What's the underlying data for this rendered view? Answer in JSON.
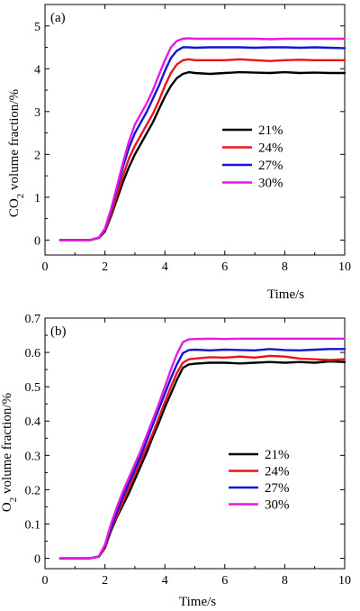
{
  "colors": {
    "21%": "#000000",
    "24%": "#e8141b",
    "27%": "#1414d2",
    "30%": "#e619e6"
  },
  "chart_data": [
    {
      "type": "line",
      "panel_label": "(a)",
      "ylabel_main": "CO",
      "ylabel_sub": "2",
      "ylabel_rest": " volume fraction/%",
      "xlabel": "Time/s",
      "xlim": [
        0,
        10
      ],
      "ylim": [
        -0.35,
        5.5
      ],
      "xticks": [
        0,
        2,
        4,
        6,
        8,
        10
      ],
      "yticks": [
        0,
        1,
        2,
        3,
        4,
        5
      ],
      "legend_position": "center-right",
      "x": [
        0.5,
        1.0,
        1.5,
        1.8,
        2.0,
        2.2,
        2.4,
        2.6,
        2.8,
        3.0,
        3.2,
        3.4,
        3.6,
        3.8,
        4.0,
        4.2,
        4.4,
        4.6,
        4.8,
        5.0,
        5.5,
        6.0,
        6.5,
        7.0,
        7.5,
        8.0,
        8.5,
        9.0,
        9.5,
        10.0
      ],
      "series": [
        {
          "name": "21%",
          "values": [
            0.0,
            0.0,
            0.0,
            0.05,
            0.2,
            0.55,
            0.95,
            1.35,
            1.7,
            2.0,
            2.25,
            2.5,
            2.75,
            3.05,
            3.35,
            3.6,
            3.78,
            3.88,
            3.92,
            3.9,
            3.88,
            3.9,
            3.92,
            3.91,
            3.9,
            3.92,
            3.9,
            3.91,
            3.9,
            3.9
          ]
        },
        {
          "name": "24%",
          "values": [
            0.0,
            0.0,
            0.0,
            0.05,
            0.22,
            0.6,
            1.05,
            1.5,
            1.9,
            2.2,
            2.45,
            2.7,
            2.95,
            3.25,
            3.6,
            3.9,
            4.1,
            4.2,
            4.22,
            4.2,
            4.2,
            4.2,
            4.22,
            4.2,
            4.18,
            4.2,
            4.21,
            4.2,
            4.2,
            4.2
          ]
        },
        {
          "name": "27%",
          "values": [
            0.0,
            0.0,
            0.0,
            0.06,
            0.25,
            0.68,
            1.2,
            1.7,
            2.15,
            2.5,
            2.75,
            3.0,
            3.3,
            3.6,
            3.95,
            4.25,
            4.42,
            4.5,
            4.5,
            4.49,
            4.5,
            4.5,
            4.5,
            4.49,
            4.5,
            4.5,
            4.49,
            4.5,
            4.49,
            4.48
          ]
        },
        {
          "name": "30%",
          "values": [
            0.0,
            0.0,
            0.0,
            0.06,
            0.27,
            0.72,
            1.25,
            1.8,
            2.3,
            2.7,
            2.95,
            3.2,
            3.5,
            3.85,
            4.2,
            4.5,
            4.65,
            4.7,
            4.71,
            4.7,
            4.7,
            4.7,
            4.7,
            4.7,
            4.69,
            4.7,
            4.7,
            4.7,
            4.7,
            4.7
          ]
        }
      ]
    },
    {
      "type": "line",
      "panel_label": "(b)",
      "ylabel_main": "O",
      "ylabel_sub": "2",
      "ylabel_rest": " volume fraction/%",
      "xlabel": "Time/s",
      "xlim": [
        0,
        10
      ],
      "ylim": [
        -0.03,
        0.7
      ],
      "xticks": [
        0,
        2,
        4,
        6,
        8,
        10
      ],
      "yticks": [
        0.0,
        0.1,
        0.2,
        0.3,
        0.4,
        0.5,
        0.6,
        0.7
      ],
      "ytick_labels": [
        "0",
        "0.1",
        "0.2",
        "0.3",
        "0.4",
        "0.5",
        "0.6",
        "0.7"
      ],
      "legend_position": "center-right",
      "x": [
        0.5,
        1.0,
        1.5,
        1.8,
        2.0,
        2.2,
        2.4,
        2.6,
        2.8,
        3.0,
        3.2,
        3.4,
        3.6,
        3.8,
        4.0,
        4.2,
        4.4,
        4.6,
        4.8,
        5.0,
        5.5,
        6.0,
        6.5,
        7.0,
        7.5,
        8.0,
        8.5,
        9.0,
        9.5,
        10.0
      ],
      "series": [
        {
          "name": "21%",
          "values": [
            0.0,
            0.0,
            0.0,
            0.005,
            0.03,
            0.08,
            0.12,
            0.155,
            0.19,
            0.23,
            0.27,
            0.31,
            0.355,
            0.395,
            0.44,
            0.48,
            0.52,
            0.555,
            0.565,
            0.567,
            0.57,
            0.57,
            0.568,
            0.57,
            0.572,
            0.57,
            0.572,
            0.57,
            0.574,
            0.572
          ]
        },
        {
          "name": "24%",
          "values": [
            0.0,
            0.0,
            0.0,
            0.005,
            0.03,
            0.085,
            0.125,
            0.165,
            0.205,
            0.245,
            0.285,
            0.325,
            0.365,
            0.41,
            0.455,
            0.5,
            0.54,
            0.57,
            0.58,
            0.582,
            0.586,
            0.585,
            0.588,
            0.585,
            0.59,
            0.588,
            0.582,
            0.58,
            0.578,
            0.58
          ]
        },
        {
          "name": "27%",
          "values": [
            0.0,
            0.0,
            0.0,
            0.006,
            0.035,
            0.09,
            0.135,
            0.18,
            0.22,
            0.26,
            0.3,
            0.345,
            0.39,
            0.435,
            0.48,
            0.525,
            0.565,
            0.598,
            0.607,
            0.608,
            0.606,
            0.608,
            0.607,
            0.606,
            0.61,
            0.607,
            0.606,
            0.608,
            0.61,
            0.61
          ]
        },
        {
          "name": "30%",
          "values": [
            0.0,
            0.0,
            0.0,
            0.006,
            0.04,
            0.1,
            0.15,
            0.195,
            0.235,
            0.275,
            0.315,
            0.36,
            0.405,
            0.45,
            0.5,
            0.55,
            0.595,
            0.63,
            0.638,
            0.639,
            0.64,
            0.639,
            0.64,
            0.64,
            0.64,
            0.64,
            0.64,
            0.64,
            0.64,
            0.64
          ]
        }
      ]
    }
  ]
}
